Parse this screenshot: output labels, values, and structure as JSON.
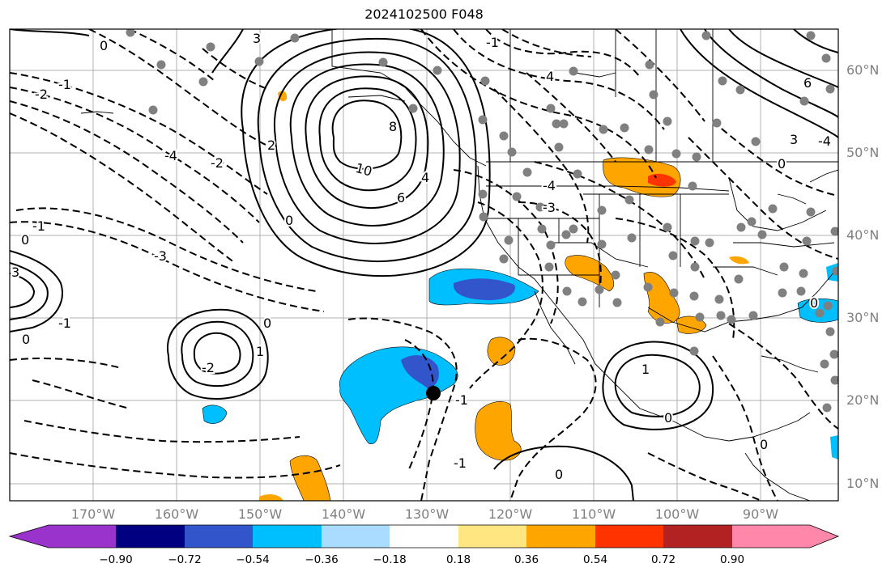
{
  "title": "2024102500 F048",
  "lat_labels": [
    "60°N",
    "50°N",
    "40°N",
    "30°N",
    "20°N",
    "10°N"
  ],
  "lon_labels": [
    "170°W",
    "160°W",
    "150°W",
    "140°W",
    "130°W",
    "120°W",
    "110°W",
    "100°W",
    "90°W"
  ],
  "contour_labels": [
    "10",
    "8",
    "6",
    "4",
    "2",
    "0",
    "-1",
    "-2",
    "-3",
    "-4",
    "3",
    "1"
  ],
  "colorbar": {
    "ticks": [
      "−0.90",
      "−0.72",
      "−0.54",
      "−0.36",
      "−0.18",
      "0.18",
      "0.36",
      "0.54",
      "0.72",
      "0.90"
    ],
    "colors": [
      "#9933cc",
      "#000080",
      "#3355cc",
      "#00bfff",
      "#aadcff",
      "#ffffff",
      "#ffe680",
      "#ffa500",
      "#ff3300",
      "#b22222",
      "#ff88aa"
    ]
  },
  "colors": {
    "positive_contour": "#000000",
    "negative_contour": "#000000",
    "stations": "#808080",
    "marker": "#000000"
  }
}
